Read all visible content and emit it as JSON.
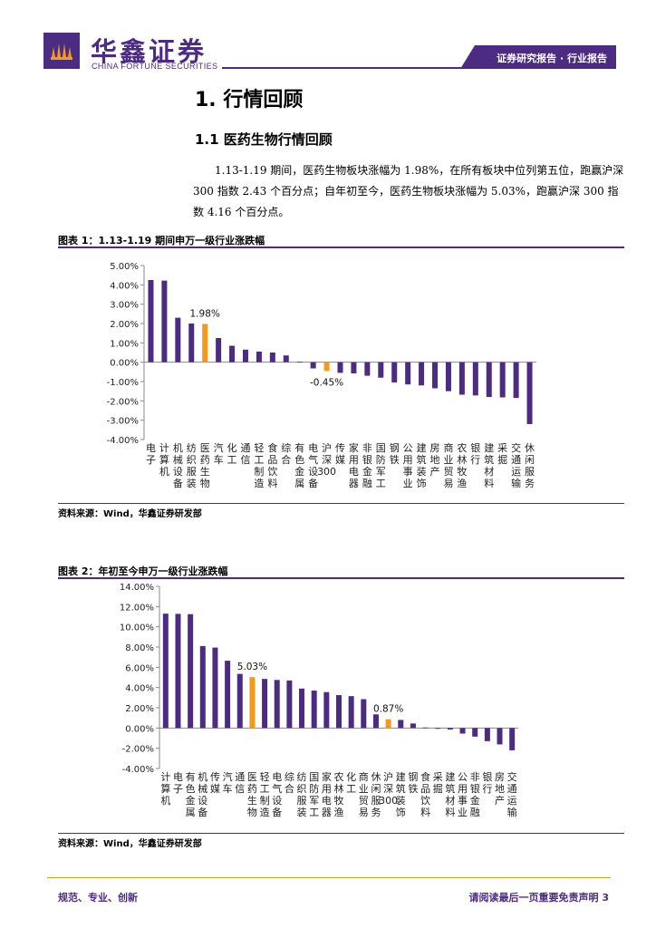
{
  "header": {
    "brand_cn": "华鑫证券",
    "brand_en": "CHINA FORTUNE SECURITIES",
    "tab": "证券研究报告 · 行业报告"
  },
  "section": {
    "h1": "1. 行情回顾",
    "h2": "1.1 医药生物行情回顾",
    "paragraph": "1.13-1.19 期间，医药生物板块涨幅为 1.98%，在所有板块中位列第五位，跑赢沪深 300 指数 2.43 个百分点；自年初至今，医药生物板块涨幅为 5.03%，跑赢沪深 300 指数 4.16 个百分点。"
  },
  "figures": [
    {
      "title": "图表 1：1.13-1.19 期间申万一级行业涨跌幅",
      "source": "资料来源：Wind，华鑫证券研发部"
    },
    {
      "title": "图表 2：年初至今申万一级行业涨跌幅",
      "source": "资料来源：Wind，华鑫证券研发部"
    }
  ],
  "footer": {
    "left": "规范、专业、创新",
    "right": "请阅读最后一页重要免责声明 3"
  },
  "colors": {
    "bar": "#4b2c82",
    "highlight": "#f39a1e",
    "brand": "#4b2c82"
  },
  "chart_data": [
    {
      "type": "bar",
      "title": "图表 1：1.13-1.19 期间申万一级行业涨跌幅",
      "categories": [
        "电子",
        "计算机",
        "机械设备",
        "纺织服装",
        "医药生物",
        "汽车",
        "化工",
        "通信",
        "轻工制造",
        "食品饮料",
        "综合",
        "有色金属",
        "电气设备",
        "沪深300",
        "传媒",
        "家用电器",
        "非银金融",
        "国防军工",
        "钢铁",
        "公用事业",
        "建筑装饰",
        "房地产",
        "商业贸易",
        "农林牧渔",
        "银行",
        "建筑材料",
        "采掘",
        "交通运输",
        "休闲服务"
      ],
      "values": [
        4.25,
        4.22,
        2.3,
        2.0,
        1.98,
        1.25,
        0.85,
        0.65,
        0.55,
        0.5,
        0.35,
        0.02,
        -0.32,
        -0.45,
        -0.55,
        -0.58,
        -0.7,
        -0.8,
        -1.05,
        -1.15,
        -1.2,
        -1.35,
        -1.5,
        -1.68,
        -1.72,
        -1.8,
        -1.82,
        -1.85,
        -3.2
      ],
      "highlight": [
        "医药生物",
        "沪深300"
      ],
      "data_labels": [
        {
          "category": "医药生物",
          "text": "1.98%"
        },
        {
          "category": "沪深300",
          "text": "-0.45%"
        }
      ],
      "ylim": [
        -4,
        5
      ],
      "yticks": [
        "5.00%",
        "4.00%",
        "3.00%",
        "2.00%",
        "1.00%",
        "0.00%",
        "-1.00%",
        "-2.00%",
        "-3.00%",
        "-4.00%"
      ],
      "ytick_values": [
        5,
        4,
        3,
        2,
        1,
        0,
        -1,
        -2,
        -3,
        -4
      ],
      "grid": false,
      "legend": "none"
    },
    {
      "type": "bar",
      "title": "图表 2：年初至今申万一级行业涨跌幅",
      "categories": [
        "计算机",
        "电子",
        "有色金属",
        "机械设备",
        "传媒",
        "汽车",
        "通信",
        "医药生物",
        "轻工制造",
        "电气设备",
        "综合",
        "纺织服装",
        "国防军工",
        "家用电器",
        "农林牧渔",
        "化工",
        "商业贸易",
        "休闲服务",
        "沪深300",
        "建筑装饰",
        "钢铁",
        "食品饮料",
        "采掘",
        "建筑材料",
        "公用事业",
        "非银金融",
        "银行",
        "房地产",
        "交通运输"
      ],
      "values": [
        11.3,
        11.28,
        11.25,
        8.1,
        7.95,
        6.65,
        5.35,
        5.03,
        4.85,
        4.75,
        4.7,
        3.9,
        3.7,
        3.55,
        3.25,
        3.15,
        2.85,
        1.35,
        0.87,
        0.8,
        0.45,
        0.05,
        -0.08,
        -0.15,
        -0.55,
        -0.85,
        -1.3,
        -1.62,
        -2.2
      ],
      "highlight": [
        "医药生物",
        "沪深300"
      ],
      "data_labels": [
        {
          "category": "医药生物",
          "text": "5.03%"
        },
        {
          "category": "沪深300",
          "text": "0.87%"
        }
      ],
      "ylim": [
        -4,
        14
      ],
      "yticks": [
        "14.00%",
        "12.00%",
        "10.00%",
        "8.00%",
        "6.00%",
        "4.00%",
        "2.00%",
        "0.00%",
        "-2.00%",
        "-4.00%"
      ],
      "ytick_values": [
        14,
        12,
        10,
        8,
        6,
        4,
        2,
        0,
        -2,
        -4
      ],
      "grid": false,
      "legend": "none"
    }
  ]
}
